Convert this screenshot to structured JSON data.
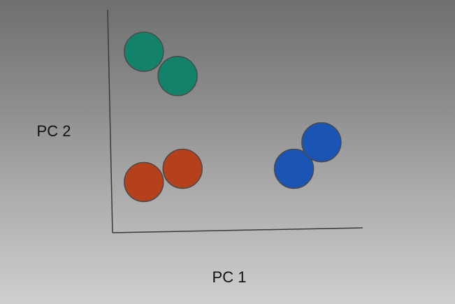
{
  "chart_data": {
    "type": "scatter",
    "title": "",
    "xlabel": "PC 1",
    "ylabel": "PC 2",
    "xlim": [
      0,
      10
    ],
    "ylim": [
      0,
      10
    ],
    "grid": false,
    "legend": "none",
    "series": [
      {
        "color": "#13826a",
        "points": [
          {
            "x": 1.25,
            "y": 8.1
          },
          {
            "x": 2.6,
            "y": 7.0
          }
        ]
      },
      {
        "color": "#b5401c",
        "points": [
          {
            "x": 1.25,
            "y": 2.2
          },
          {
            "x": 2.8,
            "y": 2.8
          }
        ]
      },
      {
        "color": "#1a55b5",
        "points": [
          {
            "x": 7.25,
            "y": 2.8
          },
          {
            "x": 8.35,
            "y": 4.0
          }
        ]
      }
    ]
  }
}
